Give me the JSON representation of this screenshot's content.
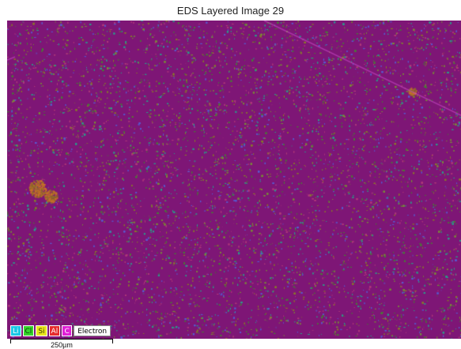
{
  "title": "EDS Layered Image 29",
  "legend": [
    {
      "label": "Li",
      "color": "#19c8e6",
      "text_color": "#ffffff"
    },
    {
      "label": "Cl",
      "color": "#36d62b",
      "text_color": "#0a3a0a"
    },
    {
      "label": "Si",
      "color": "#e9e51c",
      "text_color": "#3a3a00"
    },
    {
      "label": "Al",
      "color": "#e62b2b",
      "text_color": "#ffffff"
    },
    {
      "label": "C",
      "color": "#e01fd6",
      "text_color": "#ffffff"
    },
    {
      "label": "Electron",
      "color": "#ffffff",
      "text_color": "#000000"
    }
  ],
  "scale_bar": {
    "label": "250µm"
  },
  "map_colors": {
    "background": "#7e1676",
    "dots": [
      "#4c7a3a",
      "#8a7a2a",
      "#2e9a8a",
      "#b03a7a",
      "#5a5ad0",
      "#7a8a3a"
    ],
    "features": "#c8702a"
  }
}
